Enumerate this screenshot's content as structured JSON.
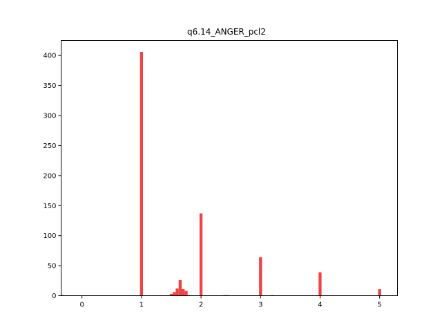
{
  "chart_data": {
    "type": "bar",
    "title": "q6.14_ANGER_pcl2",
    "xlabel": "",
    "ylabel": "",
    "xlim": [
      -0.35,
      5.3
    ],
    "ylim": [
      0,
      425
    ],
    "xticks": [
      0,
      1,
      2,
      3,
      4,
      5
    ],
    "yticks": [
      0,
      50,
      100,
      150,
      200,
      250,
      300,
      350,
      400
    ],
    "grid": false,
    "bar_color": "#f04444",
    "bin_width": 0.05,
    "bins": [
      {
        "x": -0.32,
        "value": 1
      },
      {
        "x": 1.0,
        "value": 406
      },
      {
        "x": 1.5,
        "value": 3
      },
      {
        "x": 1.55,
        "value": 6
      },
      {
        "x": 1.6,
        "value": 12
      },
      {
        "x": 1.65,
        "value": 26
      },
      {
        "x": 1.7,
        "value": 11
      },
      {
        "x": 1.75,
        "value": 8
      },
      {
        "x": 1.8,
        "value": 1
      },
      {
        "x": 2.0,
        "value": 137
      },
      {
        "x": 2.4,
        "value": 1
      },
      {
        "x": 2.45,
        "value": 1
      },
      {
        "x": 3.0,
        "value": 64
      },
      {
        "x": 3.2,
        "value": 1
      },
      {
        "x": 4.0,
        "value": 39
      },
      {
        "x": 5.0,
        "value": 11
      }
    ]
  }
}
